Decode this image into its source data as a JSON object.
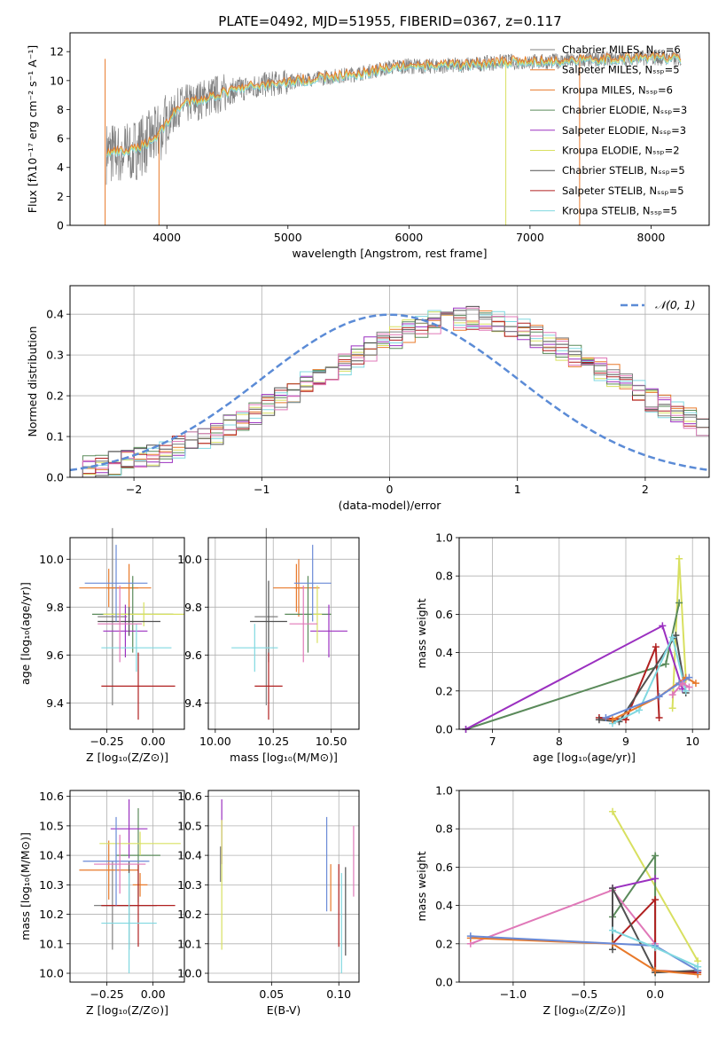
{
  "figure": {
    "title": "PLATE=0492, MJD=51955, FIBERID=0367, z=0.117"
  },
  "colors": {
    "chabrier_miles": "#808080",
    "salpeter_miles": "#e8792a",
    "kroupa_miles": "#e8792a",
    "chabrier_elodie": "#5a8a5a",
    "salpeter_elodie": "#9b30c0",
    "kroupa_elodie": "#d8e060",
    "chabrier_stelib": "#505050",
    "salpeter_stelib": "#b02020",
    "kroupa_stelib": "#80d8e0",
    "normal_curve": "#5b8bd6",
    "ebv_blue": "#6a8ad6",
    "ebv_pink": "#e078b8"
  },
  "chart_data": [
    {
      "id": "spectrum",
      "type": "line",
      "xlabel": "wavelength [Angstrom, rest frame]",
      "ylabel": "Flux [fλ10⁻¹⁷ erg cm⁻² s⁻¹ A⁻¹]",
      "xlim": [
        3200,
        8480
      ],
      "ylim": [
        0,
        13.3
      ],
      "xticks": [
        "4000",
        "5000",
        "6000",
        "7000",
        "8000"
      ],
      "yticks": [
        "0",
        "2",
        "4",
        "6",
        "8",
        "10",
        "12"
      ],
      "legend_position": "right",
      "legend": [
        "Chabrier MILES, N_SSP=6",
        "Salpeter MILES, N_SSP=5",
        "Kroupa MILES, N_SSP=6",
        "Chabrier ELODIE, N_SSP=3",
        "Salpeter ELODIE, N_SSP=3",
        "Kroupa ELODIE, N_SSP=2",
        "Chabrier STELIB, N_SSP=5",
        "Salpeter STELIB, N_SSP=5",
        "Kroupa STELIB, N_SSP=5"
      ],
      "continuum": [
        {
          "x": 3500,
          "y": 5.0
        },
        {
          "x": 3700,
          "y": 5.1
        },
        {
          "x": 3900,
          "y": 6.0
        },
        {
          "x": 4100,
          "y": 8.2
        },
        {
          "x": 4400,
          "y": 9.0
        },
        {
          "x": 4700,
          "y": 9.6
        },
        {
          "x": 5000,
          "y": 9.9
        },
        {
          "x": 5300,
          "y": 10.2
        },
        {
          "x": 5600,
          "y": 10.5
        },
        {
          "x": 5900,
          "y": 11.0
        },
        {
          "x": 6200,
          "y": 11.0
        },
        {
          "x": 6500,
          "y": 11.1
        },
        {
          "x": 6800,
          "y": 11.3
        },
        {
          "x": 7100,
          "y": 11.3
        },
        {
          "x": 7400,
          "y": 11.4
        },
        {
          "x": 7700,
          "y": 11.5
        },
        {
          "x": 8000,
          "y": 11.6
        },
        {
          "x": 8250,
          "y": 11.5
        }
      ]
    },
    {
      "id": "residual_hist",
      "type": "area",
      "xlabel": "(data-model)/error",
      "ylabel": "Normed distribution",
      "xlim": [
        -2.5,
        2.5
      ],
      "ylim": [
        0,
        0.47
      ],
      "xticks": [
        "−2",
        "−1",
        "0",
        "1",
        "2"
      ],
      "yticks": [
        "0.0",
        "0.1",
        "0.2",
        "0.3",
        "0.4"
      ],
      "legend": [
        "𝒩(0, 1)"
      ],
      "legend_position": "top-right",
      "bin_width": 0.1,
      "bin_start": -2.5,
      "envelope": [
        0.02,
        0.025,
        0.03,
        0.035,
        0.04,
        0.05,
        0.055,
        0.065,
        0.075,
        0.085,
        0.1,
        0.11,
        0.125,
        0.14,
        0.155,
        0.175,
        0.19,
        0.21,
        0.23,
        0.25,
        0.265,
        0.28,
        0.3,
        0.315,
        0.33,
        0.345,
        0.36,
        0.37,
        0.38,
        0.385,
        0.39,
        0.39,
        0.385,
        0.38,
        0.37,
        0.36,
        0.345,
        0.33,
        0.315,
        0.3,
        0.28,
        0.265,
        0.25,
        0.23,
        0.21,
        0.19,
        0.175,
        0.155,
        0.14,
        0.125
      ]
    },
    {
      "id": "age_vs_Z",
      "type": "scatter",
      "xlabel": "Z [log₁₀(Z/Z⊙)]",
      "ylabel": "age  [log₁₀(age/yr)]",
      "xlim": [
        -0.45,
        0.17
      ],
      "ylim": [
        9.29,
        10.09
      ],
      "xticks": [
        "−0.25",
        "0.00"
      ],
      "yticks": [
        "9.4",
        "9.6",
        "9.8",
        "10.0"
      ],
      "points": [
        {
          "series": "chabrier_miles",
          "x": -0.22,
          "y": 9.76,
          "xerr": 0.08,
          "yerr": 0.37
        },
        {
          "series": "salpeter_miles",
          "x": -0.24,
          "y": 9.88,
          "xerr": 0.16,
          "yerr": 0.08
        },
        {
          "series": "kroupa_miles",
          "x": -0.13,
          "y": 9.88,
          "xerr": 0.12,
          "yerr": 0.1
        },
        {
          "series": "chabrier_elodie",
          "x": -0.11,
          "y": 9.77,
          "xerr": 0.22,
          "yerr": 0.16
        },
        {
          "series": "salpeter_elodie",
          "x": -0.15,
          "y": 9.7,
          "xerr": 0.12,
          "yerr": 0.11
        },
        {
          "series": "kroupa_elodie",
          "x": -0.05,
          "y": 9.77,
          "xerr": 0.22,
          "yerr": 0.05
        },
        {
          "series": "chabrier_stelib",
          "x": -0.13,
          "y": 9.74,
          "xerr": 0.17,
          "yerr": 0.06
        },
        {
          "series": "salpeter_stelib",
          "x": -0.08,
          "y": 9.47,
          "xerr": 0.2,
          "yerr": 0.14
        },
        {
          "series": "kroupa_stelib",
          "x": -0.09,
          "y": 9.63,
          "xerr": 0.19,
          "yerr": 0.1
        },
        {
          "series": "ebv_blue",
          "x": -0.2,
          "y": 9.9,
          "xerr": 0.17,
          "yerr": 0.16
        },
        {
          "series": "ebv_pink",
          "x": -0.18,
          "y": 9.73,
          "xerr": 0.12,
          "yerr": 0.16
        }
      ]
    },
    {
      "id": "age_vs_mass",
      "type": "scatter",
      "xlabel": "mass [log₁₀(M/M⊙)]",
      "ylabel": "",
      "xlim": [
        9.97,
        10.62
      ],
      "ylim": [
        9.29,
        10.09
      ],
      "xticks": [
        "10.00",
        "10.25",
        "10.50"
      ],
      "yticks": [
        "9.4",
        "9.6",
        "9.8",
        "10.0"
      ],
      "points": [
        {
          "series": "chabrier_miles",
          "x": 10.22,
          "y": 9.76,
          "xerr": 0.05,
          "yerr": 0.37
        },
        {
          "series": "salpeter_miles",
          "x": 10.35,
          "y": 9.88,
          "xerr": 0.1,
          "yerr": 0.1
        },
        {
          "series": "kroupa_miles",
          "x": 10.36,
          "y": 9.88,
          "xerr": 0.02,
          "yerr": 0.12
        },
        {
          "series": "chabrier_elodie",
          "x": 10.4,
          "y": 9.77,
          "xerr": 0.1,
          "yerr": 0.16
        },
        {
          "series": "salpeter_elodie",
          "x": 10.49,
          "y": 9.7,
          "xerr": 0.08,
          "yerr": 0.11
        },
        {
          "series": "kroupa_elodie",
          "x": 10.44,
          "y": 9.77,
          "xerr": 0.02,
          "yerr": 0.12
        },
        {
          "series": "chabrier_stelib",
          "x": 10.23,
          "y": 9.74,
          "xerr": 0.08,
          "yerr": 0.17
        },
        {
          "series": "salpeter_stelib",
          "x": 10.23,
          "y": 9.47,
          "xerr": 0.06,
          "yerr": 0.14
        },
        {
          "series": "kroupa_stelib",
          "x": 10.17,
          "y": 9.63,
          "xerr": 0.1,
          "yerr": 0.1
        },
        {
          "series": "ebv_blue",
          "x": 10.42,
          "y": 9.9,
          "xerr": 0.08,
          "yerr": 0.16
        },
        {
          "series": "ebv_pink",
          "x": 10.38,
          "y": 9.73,
          "xerr": 0.06,
          "yerr": 0.16
        }
      ]
    },
    {
      "id": "weight_vs_age",
      "type": "line",
      "xlabel": "age  [log₁₀(age/yr)]",
      "ylabel": "mass weight",
      "xlim": [
        6.5,
        10.25
      ],
      "ylim": [
        0,
        1.0
      ],
      "xticks": [
        "7",
        "8",
        "9",
        "10"
      ],
      "yticks": [
        "0.0",
        "0.2",
        "0.4",
        "0.6",
        "0.8",
        "1.0"
      ],
      "series": [
        {
          "key": "kroupa_elodie",
          "x": [
            9.7,
            9.8,
            9.9
          ],
          "y": [
            0.11,
            0.89,
            0.26
          ]
        },
        {
          "key": "chabrier_elodie",
          "x": [
            6.6,
            9.6,
            9.8
          ],
          "y": [
            0.0,
            0.34,
            0.66
          ]
        },
        {
          "key": "salpeter_elodie",
          "x": [
            6.6,
            9.55,
            9.85
          ],
          "y": [
            0.0,
            0.54,
            0.21
          ]
        },
        {
          "key": "salpeter_stelib",
          "x": [
            8.6,
            9.0,
            9.45,
            9.5
          ],
          "y": [
            0.06,
            0.05,
            0.43,
            0.06
          ]
        },
        {
          "key": "chabrier_stelib",
          "x": [
            8.6,
            8.9,
            9.75,
            9.9
          ],
          "y": [
            0.05,
            0.04,
            0.49,
            0.19
          ]
        },
        {
          "key": "kroupa_stelib",
          "x": [
            8.8,
            9.2,
            9.7,
            9.9
          ],
          "y": [
            0.03,
            0.1,
            0.48,
            0.2
          ]
        },
        {
          "key": "salpeter_miles",
          "x": [
            8.8,
            9.5,
            9.9,
            10.05
          ],
          "y": [
            0.05,
            0.17,
            0.27,
            0.24
          ]
        },
        {
          "key": "ebv_blue",
          "x": [
            8.7,
            9.5,
            9.8,
            9.95
          ],
          "y": [
            0.06,
            0.17,
            0.24,
            0.27
          ]
        },
        {
          "key": "ebv_pink",
          "x": [
            9.7,
            9.85,
            9.95
          ],
          "y": [
            0.18,
            0.24,
            0.22
          ]
        }
      ]
    },
    {
      "id": "mass_vs_Z",
      "type": "scatter",
      "xlabel": "Z [log₁₀(Z/Z⊙)]",
      "ylabel": "mass [log₁₀(M/M⊙)]",
      "xlim": [
        -0.45,
        0.17
      ],
      "ylim": [
        9.97,
        10.62
      ],
      "xticks": [
        "−0.25",
        "0.00"
      ],
      "yticks": [
        "10.0",
        "10.1",
        "10.2",
        "10.3",
        "10.4",
        "10.5",
        "10.6"
      ],
      "points": [
        {
          "series": "chabrier_miles",
          "x": -0.22,
          "y": 10.23,
          "xerr": 0.1,
          "yerr": 0.15
        },
        {
          "series": "salpeter_miles",
          "x": -0.24,
          "y": 10.35,
          "xerr": 0.16,
          "yerr": 0.1
        },
        {
          "series": "kroupa_miles",
          "x": -0.07,
          "y": 10.3,
          "xerr": 0.04,
          "yerr": 0.04
        },
        {
          "series": "chabrier_elodie",
          "x": -0.08,
          "y": 10.4,
          "xerr": 0.12,
          "yerr": 0.16
        },
        {
          "series": "salpeter_elodie",
          "x": -0.13,
          "y": 10.49,
          "xerr": 0.1,
          "yerr": 0.1
        },
        {
          "series": "kroupa_elodie",
          "x": -0.07,
          "y": 10.44,
          "xerr": 0.22,
          "yerr": 0.04
        },
        {
          "series": "chabrier_stelib",
          "x": -0.13,
          "y": 10.23,
          "xerr": 0.15,
          "yerr": 0.15
        },
        {
          "series": "salpeter_stelib",
          "x": -0.08,
          "y": 10.23,
          "xerr": 0.2,
          "yerr": 0.14
        },
        {
          "series": "kroupa_stelib",
          "x": -0.13,
          "y": 10.17,
          "xerr": 0.15,
          "yerr": 0.17
        },
        {
          "series": "ebv_blue",
          "x": -0.2,
          "y": 10.38,
          "xerr": 0.18,
          "yerr": 0.15
        },
        {
          "series": "ebv_pink",
          "x": -0.18,
          "y": 10.37,
          "xerr": 0.14,
          "yerr": 0.1
        }
      ]
    },
    {
      "id": "mass_vs_ebv",
      "type": "scatter",
      "xlabel": "E(B-V)",
      "ylabel": "",
      "xlim": [
        0.003,
        0.115
      ],
      "ylim": [
        9.97,
        10.62
      ],
      "xticks": [
        "0.05",
        "0.10"
      ],
      "yticks": [
        "10.0",
        "10.1",
        "10.2",
        "10.3",
        "10.4",
        "10.5",
        "10.6"
      ],
      "points": [
        {
          "series": "chabrier_miles",
          "x": 0.012,
          "y": 10.37,
          "yerr": 0.06
        },
        {
          "series": "salpeter_elodie",
          "x": 0.013,
          "y": 10.48,
          "yerr": 0.11
        },
        {
          "series": "kroupa_elodie",
          "x": 0.013,
          "y": 10.3,
          "yerr": 0.22
        },
        {
          "series": "ebv_blue",
          "x": 0.091,
          "y": 10.37,
          "yerr": 0.16
        },
        {
          "series": "salpeter_miles",
          "x": 0.094,
          "y": 10.29,
          "yerr": 0.08
        },
        {
          "series": "salpeter_stelib",
          "x": 0.1,
          "y": 10.23,
          "yerr": 0.14
        },
        {
          "series": "kroupa_stelib",
          "x": 0.102,
          "y": 10.17,
          "yerr": 0.17
        },
        {
          "series": "chabrier_stelib",
          "x": 0.105,
          "y": 10.21,
          "yerr": 0.15
        },
        {
          "series": "ebv_pink",
          "x": 0.111,
          "y": 10.38,
          "yerr": 0.12
        }
      ]
    },
    {
      "id": "weight_vs_Z",
      "type": "line",
      "xlabel": "Z [log₁₀(Z/Z⊙)]",
      "ylabel": "mass weight",
      "xlim": [
        -1.38,
        0.38
      ],
      "ylim": [
        0,
        1.0
      ],
      "xticks": [
        "−1.0",
        "−0.5",
        "0.0"
      ],
      "yticks": [
        "0.0",
        "0.2",
        "0.4",
        "0.6",
        "0.8",
        "1.0"
      ],
      "series": [
        {
          "key": "kroupa_elodie",
          "x": [
            -0.3,
            0.3
          ],
          "y": [
            0.89,
            0.11
          ]
        },
        {
          "key": "chabrier_elodie",
          "x": [
            -0.3,
            0.0,
            0.0
          ],
          "y": [
            0.34,
            0.66,
            0.05
          ]
        },
        {
          "key": "salpeter_elodie",
          "x": [
            -0.3,
            0.0
          ],
          "y": [
            0.49,
            0.54
          ]
        },
        {
          "key": "ebv_pink",
          "x": [
            -1.3,
            -0.3,
            0.0
          ],
          "y": [
            0.2,
            0.48,
            0.2
          ]
        },
        {
          "key": "salpeter_stelib",
          "x": [
            -0.3,
            0.0,
            0.0,
            0.3
          ],
          "y": [
            0.2,
            0.43,
            0.06,
            0.05
          ]
        },
        {
          "key": "chabrier_stelib",
          "x": [
            -0.3,
            -0.3,
            0.0,
            0.3
          ],
          "y": [
            0.17,
            0.49,
            0.05,
            0.06
          ]
        },
        {
          "key": "salpeter_miles",
          "x": [
            -1.3,
            -0.3,
            0.0,
            0.3
          ],
          "y": [
            0.23,
            0.2,
            0.06,
            0.04
          ]
        },
        {
          "key": "ebv_blue",
          "x": [
            -1.3,
            0.0,
            0.3
          ],
          "y": [
            0.24,
            0.19,
            0.06
          ]
        },
        {
          "key": "kroupa_stelib",
          "x": [
            -0.3,
            0.0,
            0.3
          ],
          "y": [
            0.27,
            0.18,
            0.08
          ]
        }
      ]
    }
  ]
}
